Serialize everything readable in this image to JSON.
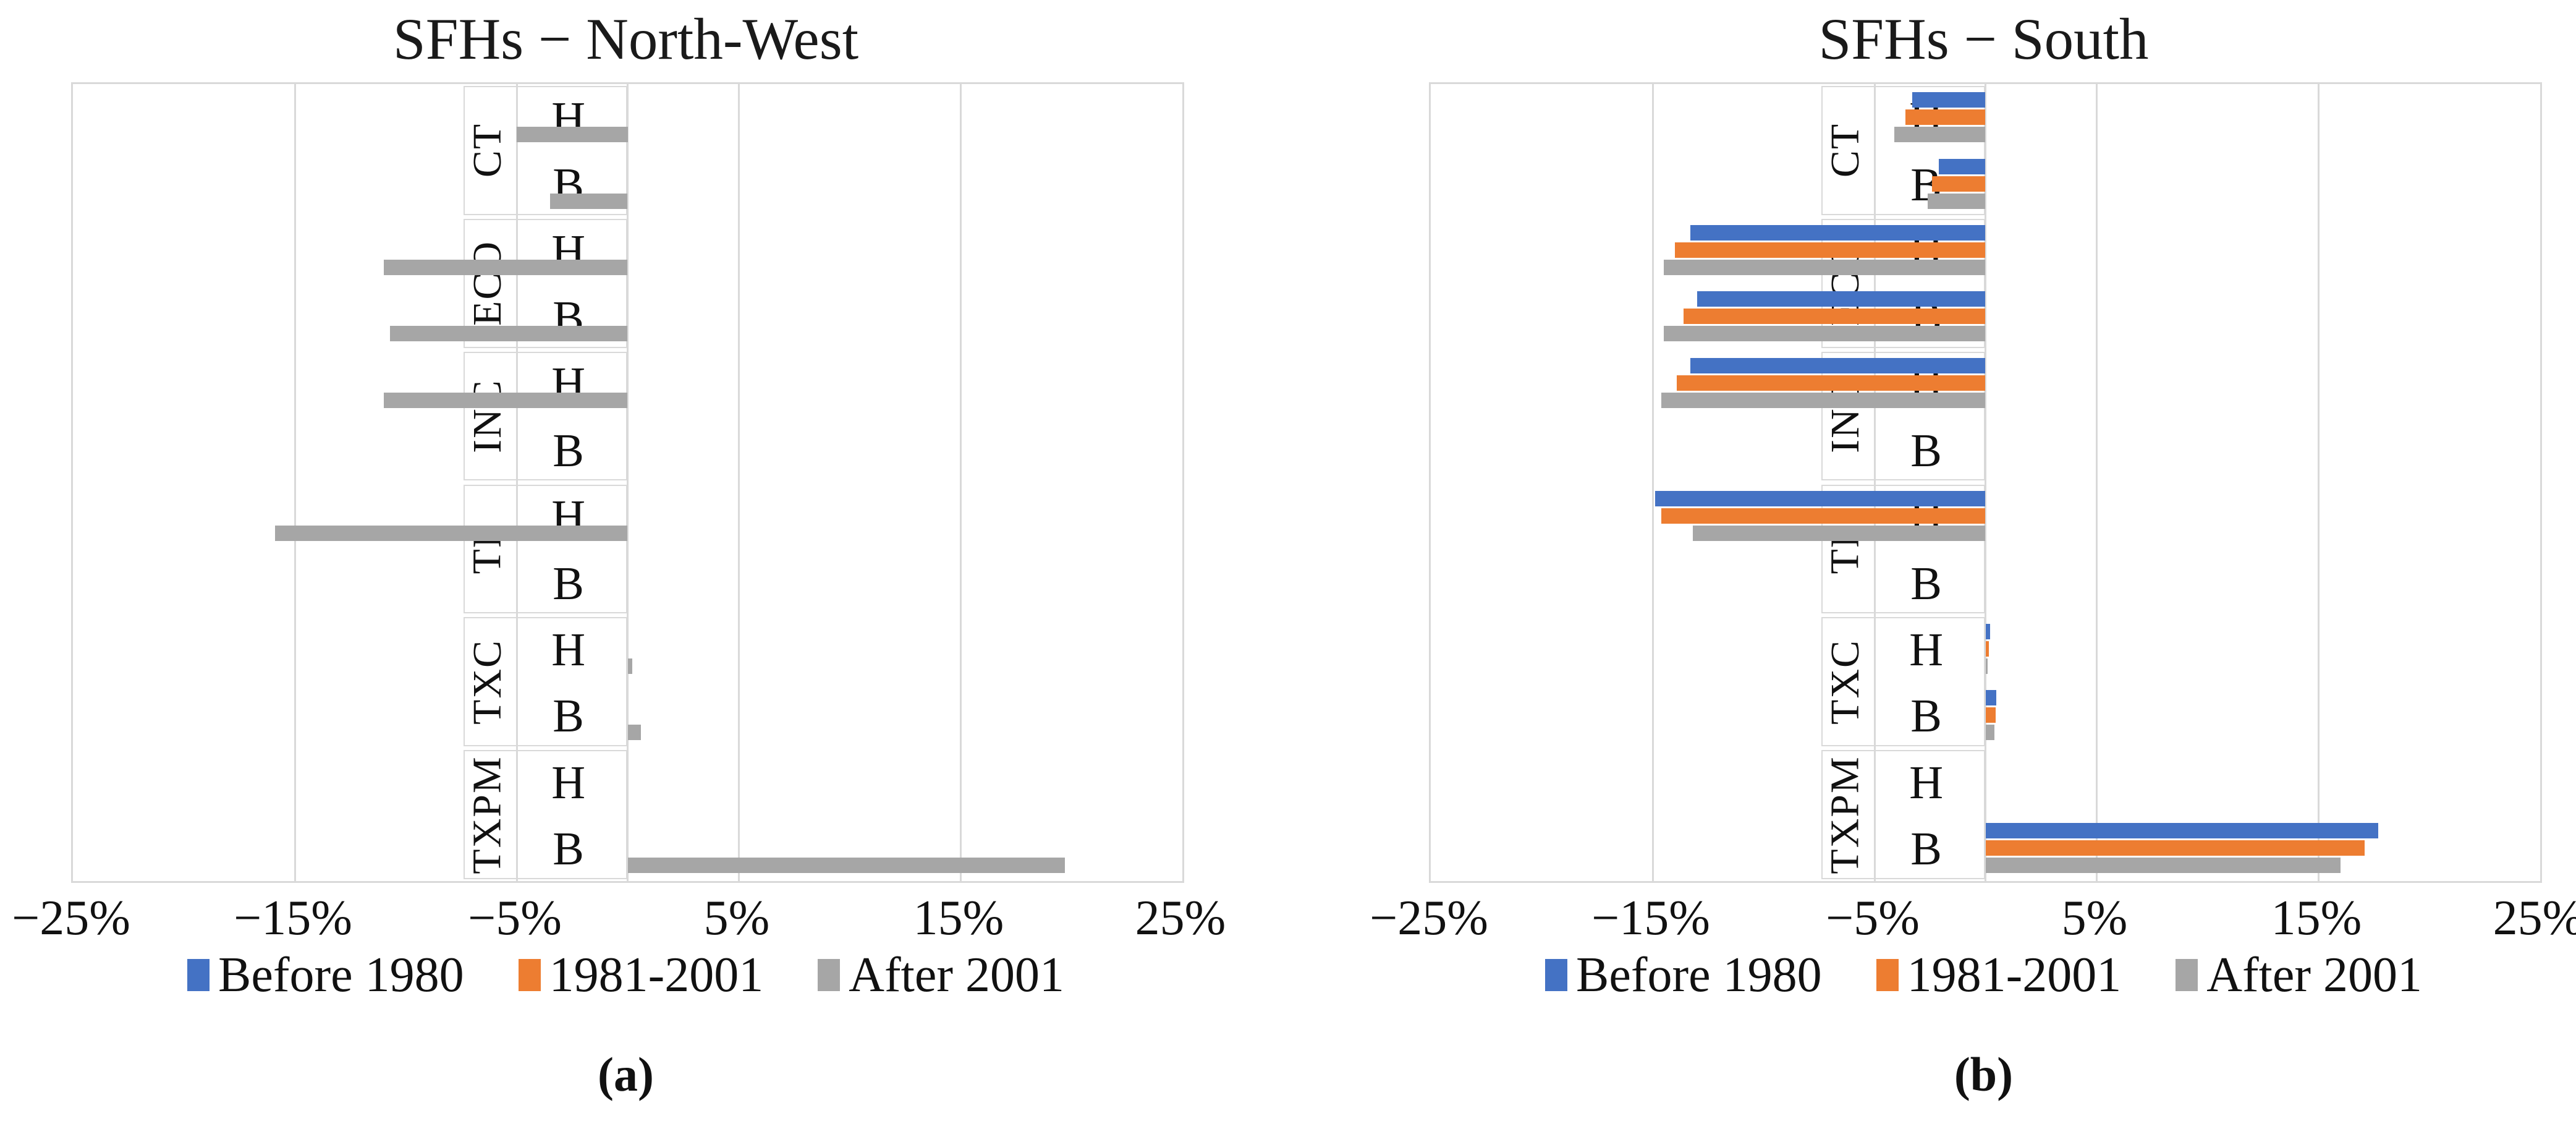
{
  "figure": {
    "background": "#ffffff",
    "gridline_color": "#d9d9d9",
    "label_box_border_color": "#d9d9d9"
  },
  "chart_data": [
    {
      "type": "bar",
      "orientation": "horizontal",
      "title": "SFHs − North-West",
      "caption": "(a)",
      "x_axis": {
        "min": -25,
        "max": 25,
        "tick_values": [
          -25,
          -15,
          -5,
          5,
          15,
          25
        ],
        "tick_labels": [
          "−25%",
          "−15%",
          "−5%",
          "5%",
          "15%",
          "25%"
        ],
        "unit": "%"
      },
      "legend_position": "bottom",
      "grid": true,
      "categories": [
        "CT",
        "ECO",
        "INC",
        "TF",
        "TXC",
        "TXPM"
      ],
      "series": [
        {
          "name": "Before 1980",
          "color": "#4472C4"
        },
        {
          "name": "1981-2001",
          "color": "#ED7D31"
        },
        {
          "name": "After 2001",
          "color": "#A6A6A6"
        }
      ],
      "rows": [
        {
          "group": "CT",
          "label": "H",
          "values": [
            0,
            0,
            -5.0
          ]
        },
        {
          "group": "CT",
          "label": "B",
          "values": [
            0,
            0,
            -3.5
          ]
        },
        {
          "group": "ECO",
          "label": "H",
          "values": [
            0,
            0,
            -11.0
          ]
        },
        {
          "group": "ECO",
          "label": "B",
          "values": [
            0,
            0,
            -10.7
          ]
        },
        {
          "group": "INC",
          "label": "H",
          "values": [
            0,
            0,
            -11.0
          ]
        },
        {
          "group": "INC",
          "label": "B",
          "values": [
            0,
            0,
            0
          ]
        },
        {
          "group": "TF",
          "label": "H",
          "values": [
            0,
            0,
            -15.9
          ]
        },
        {
          "group": "TF",
          "label": "B",
          "values": [
            0,
            0,
            0
          ]
        },
        {
          "group": "TXC",
          "label": "H",
          "values": [
            0,
            0,
            0.2
          ]
        },
        {
          "group": "TXC",
          "label": "B",
          "values": [
            0,
            0,
            0.6
          ]
        },
        {
          "group": "TXPM",
          "label": "H",
          "values": [
            0,
            0,
            0
          ]
        },
        {
          "group": "TXPM",
          "label": "B",
          "values": [
            0,
            0,
            19.7
          ]
        }
      ]
    },
    {
      "type": "bar",
      "orientation": "horizontal",
      "title": "SFHs − South",
      "caption": "(b)",
      "x_axis": {
        "min": -25,
        "max": 25,
        "tick_values": [
          -25,
          -15,
          -5,
          5,
          15,
          25
        ],
        "tick_labels": [
          "−25%",
          "−15%",
          "−5%",
          "5%",
          "15%",
          "25%"
        ],
        "unit": "%"
      },
      "legend_position": "bottom",
      "grid": true,
      "categories": [
        "CT",
        "ECO",
        "INC",
        "TF",
        "TXC",
        "TXPM"
      ],
      "series": [
        {
          "name": "Before 1980",
          "color": "#4472C4"
        },
        {
          "name": "1981-2001",
          "color": "#ED7D31"
        },
        {
          "name": "After 2001",
          "color": "#A6A6A6"
        }
      ],
      "rows": [
        {
          "group": "CT",
          "label": "H",
          "values": [
            -3.3,
            -3.6,
            -4.1
          ]
        },
        {
          "group": "CT",
          "label": "B",
          "values": [
            -2.1,
            -2.4,
            -2.6
          ]
        },
        {
          "group": "ECO",
          "label": "H",
          "values": [
            -13.3,
            -14.0,
            -14.5
          ]
        },
        {
          "group": "ECO",
          "label": "B",
          "values": [
            -13.0,
            -13.6,
            -14.5
          ]
        },
        {
          "group": "INC",
          "label": "H",
          "values": [
            -13.3,
            -13.9,
            -14.6
          ]
        },
        {
          "group": "INC",
          "label": "B",
          "values": [
            0,
            0,
            0
          ]
        },
        {
          "group": "TF",
          "label": "H",
          "values": [
            -14.9,
            -14.6,
            -13.2
          ]
        },
        {
          "group": "TF",
          "label": "B",
          "values": [
            0,
            0,
            0
          ]
        },
        {
          "group": "TXC",
          "label": "H",
          "values": [
            0.2,
            0.15,
            0.1
          ]
        },
        {
          "group": "TXC",
          "label": "B",
          "values": [
            0.5,
            0.45,
            0.4
          ]
        },
        {
          "group": "TXPM",
          "label": "H",
          "values": [
            0,
            0,
            0
          ]
        },
        {
          "group": "TXPM",
          "label": "B",
          "values": [
            17.7,
            17.1,
            16.0
          ]
        }
      ]
    }
  ]
}
